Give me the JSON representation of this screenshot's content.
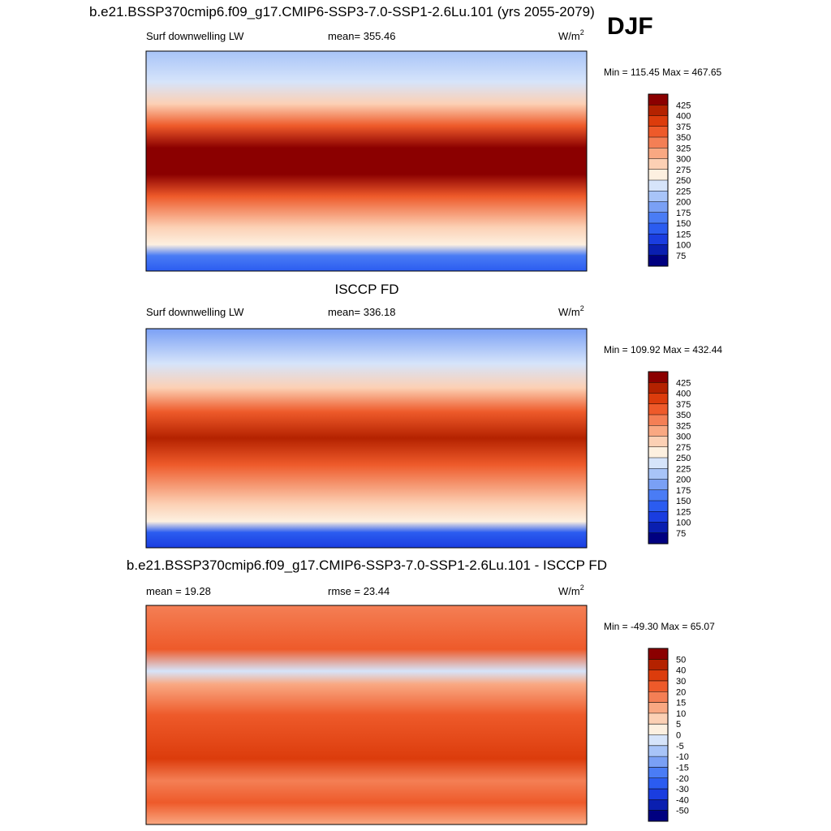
{
  "title": "b.e21.BSSP370cmip6.f09_g17.CMIP6-SSP3-7.0-SSP1-2.6Lu.101 (yrs 2055-2079)",
  "season": "DJF",
  "panels": [
    {
      "left_label": "Surf downwelling LW",
      "center_label": "mean= 355.46",
      "units": {
        "base": "W/m",
        "sup": "2"
      },
      "min_max": "Min = 115.45 Max = 467.65",
      "colorbar": {
        "levels": [
          75,
          100,
          125,
          150,
          175,
          200,
          225,
          250,
          275,
          300,
          325,
          350,
          375,
          400,
          425
        ],
        "colors": [
          "#000080",
          "#0a1fb0",
          "#1a3de0",
          "#2b5cf0",
          "#4a7cf5",
          "#7aa0f5",
          "#a8c4f8",
          "#d6e4fa",
          "#fdf0e0",
          "#fcd0b4",
          "#f9a882",
          "#f47f55",
          "#ee5a2a",
          "#dc3c0c",
          "#b42200",
          "#8b0000"
        ]
      }
    },
    {
      "title": "ISCCP FD",
      "left_label": "Surf downwelling LW",
      "center_label": "mean= 336.18",
      "units": {
        "base": "W/m",
        "sup": "2"
      },
      "min_max": "Min = 109.92 Max = 432.44",
      "colorbar": {
        "levels": [
          75,
          100,
          125,
          150,
          175,
          200,
          225,
          250,
          275,
          300,
          325,
          350,
          375,
          400,
          425
        ],
        "colors": [
          "#000080",
          "#0a1fb0",
          "#1a3de0",
          "#2b5cf0",
          "#4a7cf5",
          "#7aa0f5",
          "#a8c4f8",
          "#d6e4fa",
          "#fdf0e0",
          "#fcd0b4",
          "#f9a882",
          "#f47f55",
          "#ee5a2a",
          "#dc3c0c",
          "#b42200",
          "#8b0000"
        ]
      }
    },
    {
      "title": "b.e21.BSSP370cmip6.f09_g17.CMIP6-SSP3-7.0-SSP1-2.6Lu.101 - ISCCP FD",
      "left_label": "mean =  19.28",
      "center_label": "rmse =  23.44",
      "units": {
        "base": "W/m",
        "sup": "2"
      },
      "min_max": "Min = -49.30 Max =  65.07",
      "colorbar": {
        "levels": [
          -50,
          -40,
          -30,
          -20,
          -15,
          -10,
          -5,
          0,
          5,
          10,
          15,
          20,
          30,
          40,
          50
        ],
        "colors": [
          "#000080",
          "#0a1fb0",
          "#1a3de0",
          "#2b5cf0",
          "#4a7cf5",
          "#7aa0f5",
          "#a8c4f8",
          "#d6e4fa",
          "#fdf0e0",
          "#fcd0b4",
          "#f9a882",
          "#f47f55",
          "#ee5a2a",
          "#dc3c0c",
          "#b42200",
          "#8b0000"
        ]
      }
    }
  ]
}
